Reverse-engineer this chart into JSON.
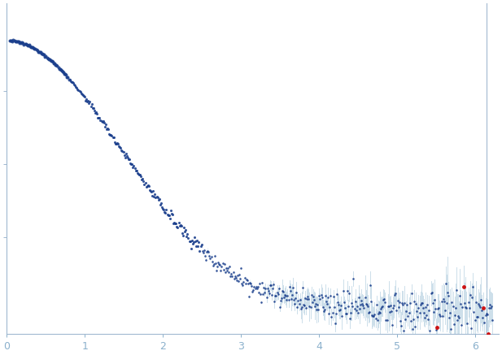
{
  "xlim": [
    0.0,
    6.3
  ],
  "ylim": [
    -0.08,
    1.05
  ],
  "dot_color": "#1a3e8c",
  "error_color": "#b0ccdf",
  "outlier_color": "#cc0000",
  "background_color": "#ffffff",
  "axis_color": "#a0b8d0",
  "dot_size": 2.2,
  "outlier_size": 3.5,
  "tick_color": "#8ab0cc",
  "xtick_vals": [
    0,
    1,
    2,
    3,
    4,
    5,
    6
  ],
  "seed": 12345
}
